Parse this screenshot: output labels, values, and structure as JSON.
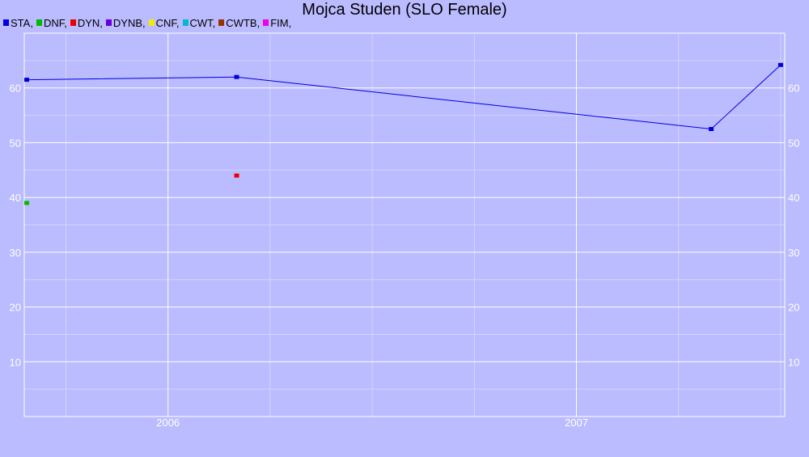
{
  "title": "Mojca Studen (SLO Female)",
  "legend": [
    {
      "label": "STA,",
      "color": "#0000dd"
    },
    {
      "label": "DNF,",
      "color": "#00bb00"
    },
    {
      "label": "DYN,",
      "color": "#ee0000"
    },
    {
      "label": "DYNB,",
      "color": "#6600dd"
    },
    {
      "label": "CNF,",
      "color": "#eeee00"
    },
    {
      "label": "CWT,",
      "color": "#00bbcc"
    },
    {
      "label": "CWTB,",
      "color": "#993300"
    },
    {
      "label": "FIM,",
      "color": "#ee00ee"
    }
  ],
  "chart_data": {
    "type": "line",
    "title": "Mojca Studen (SLO Female)",
    "xlim": [
      2005.648,
      2007.51
    ],
    "ylim": [
      0,
      70
    ],
    "x_ticks": [
      {
        "value": 2006,
        "label": "2006"
      },
      {
        "value": 2007,
        "label": "2007"
      }
    ],
    "y_ticks": [
      10,
      20,
      30,
      40,
      50,
      60
    ],
    "grid": true,
    "series": [
      {
        "name": "STA",
        "color": "#0000dd",
        "line": true,
        "points": [
          [
            2005.654,
            61.5
          ],
          [
            2006.168,
            62.0
          ],
          [
            2007.33,
            52.5
          ],
          [
            2007.5,
            64.2
          ]
        ]
      },
      {
        "name": "DNF",
        "color": "#00bb00",
        "line": false,
        "points": [
          [
            2005.654,
            39.0
          ]
        ]
      },
      {
        "name": "DYN",
        "color": "#ee0000",
        "line": false,
        "points": [
          [
            2006.168,
            44.0
          ]
        ]
      }
    ]
  }
}
